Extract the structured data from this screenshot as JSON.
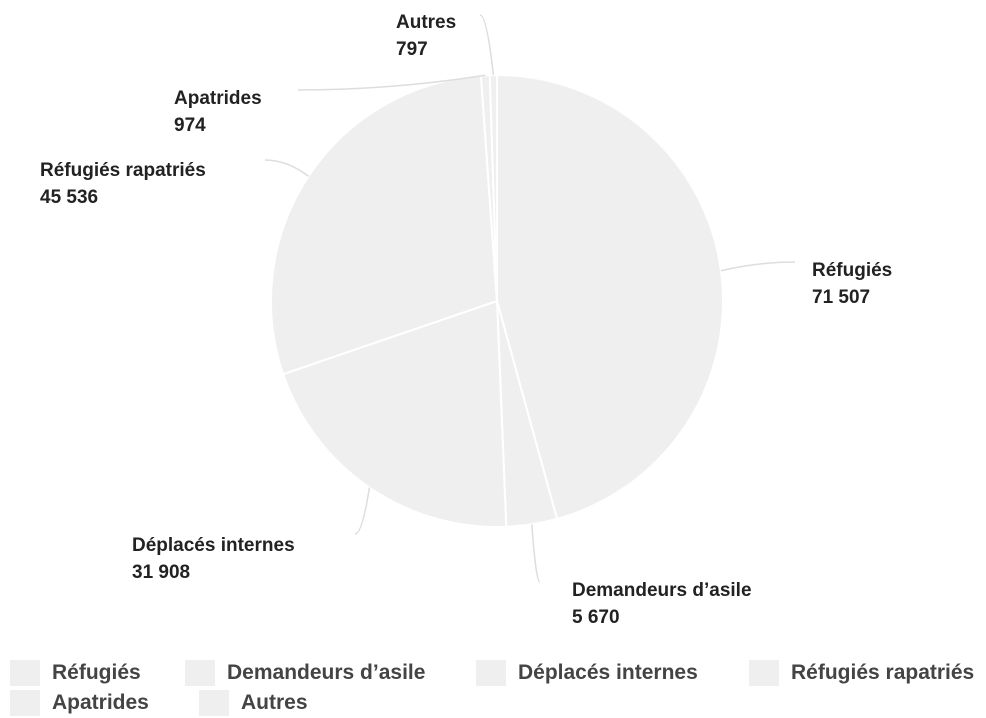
{
  "chart_data": {
    "type": "pie",
    "categories": [
      "Réfugiés",
      "Demandeurs d’asile",
      "Déplacés internes",
      "Réfugiés rapatriés",
      "Apatrides",
      "Autres"
    ],
    "values": [
      71507,
      5670,
      31908,
      45536,
      974,
      797
    ],
    "value_labels": [
      "71 507",
      "5 670",
      "31 908",
      "45 536",
      "974",
      "797"
    ],
    "colors": [
      "#efefef",
      "#efefef",
      "#efefef",
      "#efefef",
      "#efefef",
      "#efefef"
    ],
    "legend_position": "bottom"
  }
}
